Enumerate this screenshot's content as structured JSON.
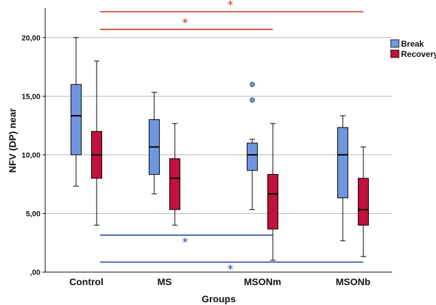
{
  "chart_data": {
    "type": "boxplot",
    "xlabel": "Groups",
    "ylabel": "NFV (DP) near",
    "ylim": [
      0,
      22.5
    ],
    "yticks": [
      {
        "value": 0,
        "label": ",00"
      },
      {
        "value": 5,
        "label": "5,00"
      },
      {
        "value": 10,
        "label": "10,00"
      },
      {
        "value": 15,
        "label": "15,00"
      },
      {
        "value": 20,
        "label": "20,00"
      }
    ],
    "grid": true,
    "legend_position": "top-right",
    "categories": [
      "Control",
      "MS",
      "MSONm",
      "MSONb"
    ],
    "series": [
      {
        "name": "Break",
        "color": "#6f97e0",
        "boxes": [
          {
            "min": 7.33,
            "q1": 10.0,
            "median": 13.33,
            "q3": 16.0,
            "max": 20.0,
            "outliers": []
          },
          {
            "min": 6.67,
            "q1": 8.33,
            "median": 10.67,
            "q3": 13.0,
            "max": 15.33,
            "outliers": []
          },
          {
            "min": 5.33,
            "q1": 8.67,
            "median": 10.0,
            "q3": 11.0,
            "max": 11.33,
            "outliers": [
              14.67,
              16.0
            ]
          },
          {
            "min": 2.67,
            "q1": 6.33,
            "median": 10.0,
            "q3": 12.33,
            "max": 13.33,
            "outliers": []
          }
        ]
      },
      {
        "name": "Recovery",
        "color": "#c1113c",
        "boxes": [
          {
            "min": 4.0,
            "q1": 8.0,
            "median": 10.0,
            "q3": 12.0,
            "max": 18.0,
            "outliers": []
          },
          {
            "min": 4.0,
            "q1": 5.33,
            "median": 8.0,
            "q3": 9.67,
            "max": 12.67,
            "outliers": []
          },
          {
            "min": 1.0,
            "q1": 3.67,
            "median": 6.67,
            "q3": 8.33,
            "max": 12.67,
            "outliers": []
          },
          {
            "min": 1.33,
            "q1": 4.0,
            "median": 5.33,
            "q3": 8.0,
            "max": 10.67,
            "outliers": []
          }
        ]
      }
    ],
    "annotations": [
      {
        "from": "Control",
        "to": "MSONb",
        "value": 22.2,
        "label": "*",
        "color": "#c0311a"
      },
      {
        "from": "Control",
        "to": "MSONm",
        "value": 20.7,
        "label": "*",
        "color": "#c0311a"
      },
      {
        "from": "Control",
        "to": "MSONm",
        "value": 3.15,
        "label": "*",
        "color": "#2145a8"
      },
      {
        "from": "Control",
        "to": "MSONb",
        "value": 0.85,
        "label": "*",
        "color": "#2145a8"
      }
    ]
  }
}
